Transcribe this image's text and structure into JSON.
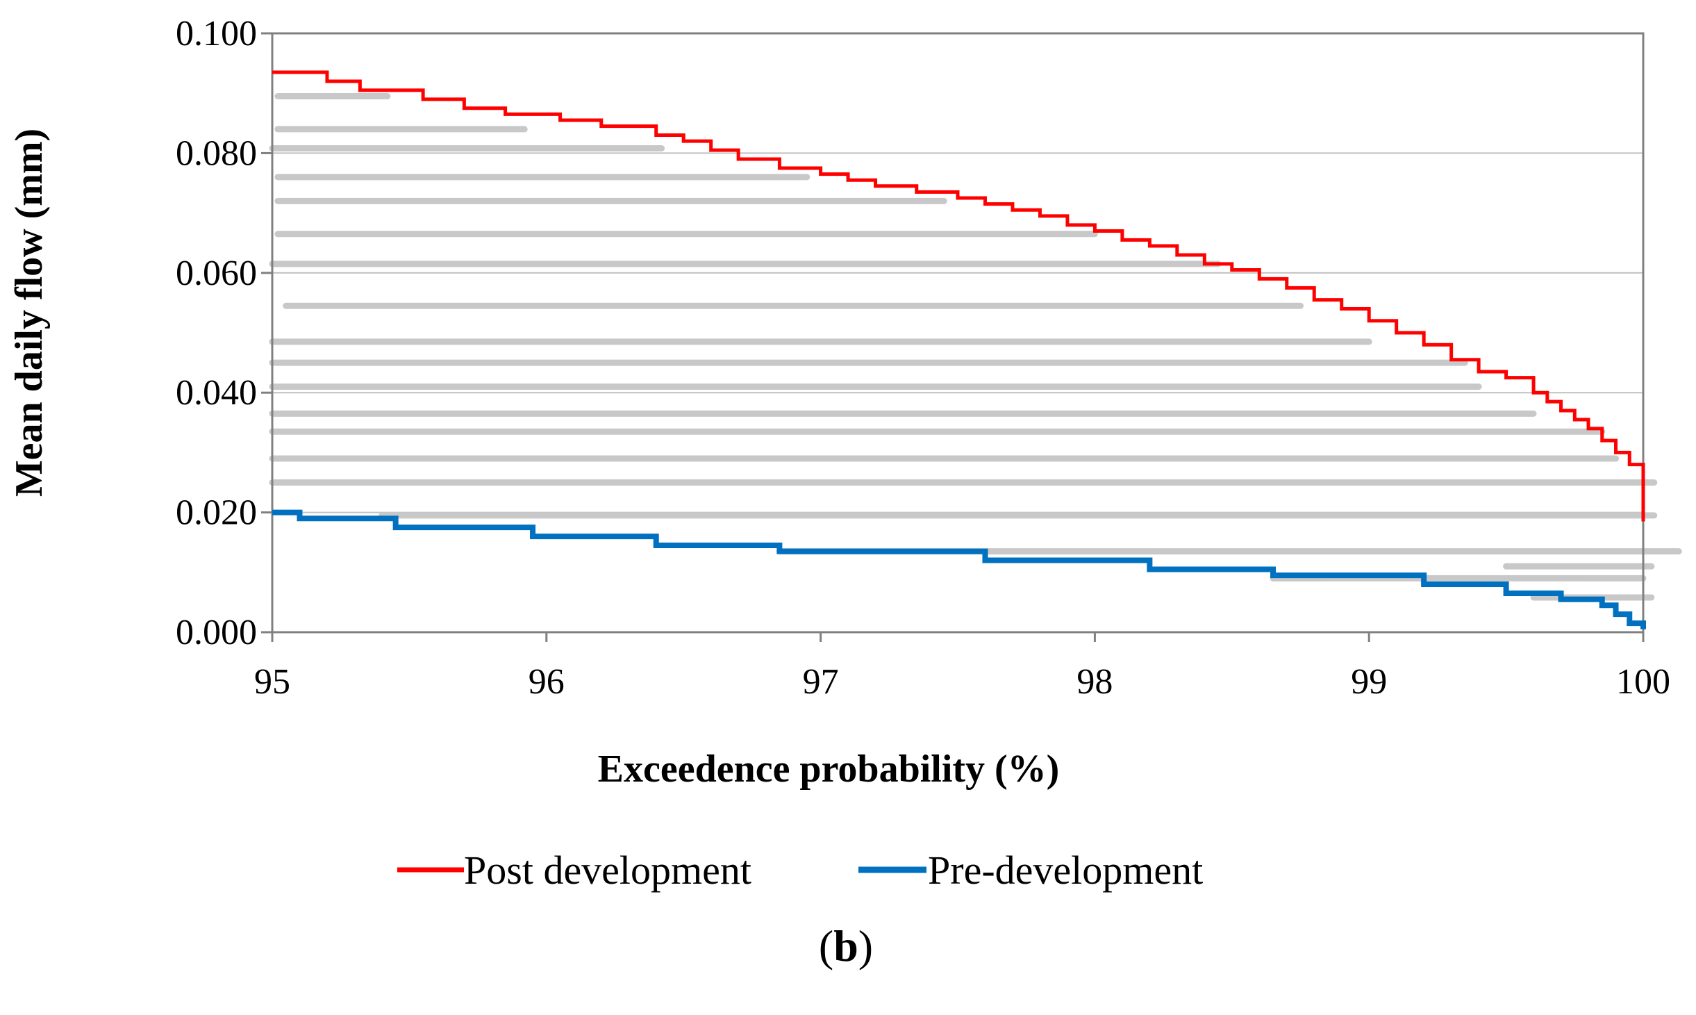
{
  "chart_data": {
    "type": "line",
    "panel_label": "(b)",
    "panel_label_letter": "b",
    "xlabel": "Exceedence probability (%)",
    "ylabel": "Mean daily flow (mm)",
    "xlim": [
      95,
      100
    ],
    "ylim": [
      0,
      0.1
    ],
    "x_ticks": [
      "95",
      "96",
      "97",
      "98",
      "99",
      "100"
    ],
    "y_ticks": [
      "0.000",
      "0.020",
      "0.040",
      "0.060",
      "0.080",
      "0.100"
    ],
    "grid": "horizontal",
    "legend_position": "bottom-center",
    "series": [
      {
        "name": "Post development",
        "color": "#ff0000",
        "x": [
          95.0,
          95.2,
          95.32,
          95.55,
          95.7,
          95.85,
          96.05,
          96.2,
          96.4,
          96.5,
          96.6,
          96.7,
          96.85,
          97.0,
          97.1,
          97.2,
          97.35,
          97.5,
          97.6,
          97.7,
          97.8,
          97.9,
          98.0,
          98.1,
          98.2,
          98.3,
          98.4,
          98.5,
          98.6,
          98.7,
          98.8,
          98.9,
          99.0,
          99.1,
          99.2,
          99.3,
          99.4,
          99.5,
          99.6,
          99.65,
          99.7,
          99.75,
          99.8,
          99.85,
          99.9,
          99.95,
          100.0
        ],
        "y": [
          0.0935,
          0.092,
          0.0905,
          0.089,
          0.0875,
          0.0865,
          0.0855,
          0.0845,
          0.083,
          0.082,
          0.0805,
          0.079,
          0.0775,
          0.0765,
          0.0755,
          0.0745,
          0.0735,
          0.0725,
          0.0715,
          0.0705,
          0.0695,
          0.068,
          0.067,
          0.0655,
          0.0645,
          0.063,
          0.0615,
          0.0605,
          0.059,
          0.0575,
          0.0555,
          0.054,
          0.052,
          0.05,
          0.048,
          0.0455,
          0.0435,
          0.0425,
          0.04,
          0.0385,
          0.037,
          0.0355,
          0.034,
          0.032,
          0.03,
          0.028,
          0.0185
        ]
      },
      {
        "name": "Pre-development",
        "color": "#0070c0",
        "x": [
          95.0,
          95.1,
          95.45,
          95.95,
          96.4,
          96.85,
          97.6,
          98.2,
          98.65,
          99.2,
          99.5,
          99.7,
          99.85,
          99.9,
          99.95,
          100.0
        ],
        "y": [
          0.02,
          0.019,
          0.0175,
          0.016,
          0.0145,
          0.0135,
          0.012,
          0.0105,
          0.0095,
          0.008,
          0.0065,
          0.0055,
          0.0045,
          0.003,
          0.0015,
          0.0005
        ]
      }
    ]
  }
}
